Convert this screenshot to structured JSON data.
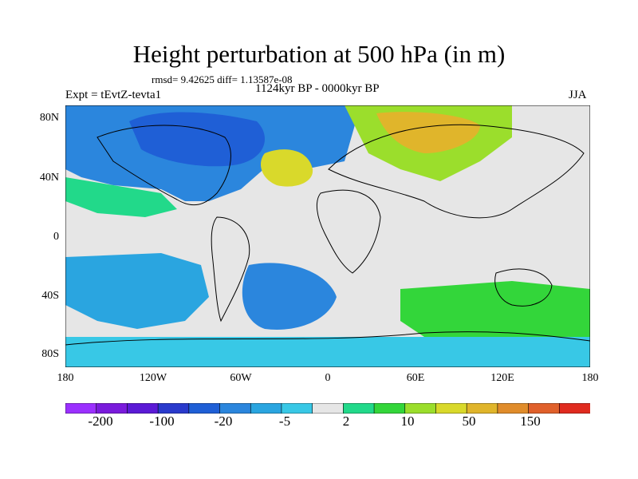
{
  "header": {
    "title": "Height perturbation at 500 hPa (in m)",
    "stats": "rmsd= 9.42625 diff= 1.13587e-08",
    "expt": "Expt = tEvtZ-tevta1",
    "period": "1124kyr BP - 0000kyr BP",
    "season": "JJA"
  },
  "map": {
    "lat_labels": [
      "80N",
      "40N",
      "0",
      "40S",
      "80S"
    ],
    "lon_labels": [
      "180",
      "120W",
      "60W",
      "0",
      "60E",
      "120E",
      "180"
    ],
    "background_color": "#e6e6e6",
    "coastline_color": "#000000"
  },
  "colorbar": {
    "colors": [
      "#9b30ff",
      "#7a1bdc",
      "#5b1ad6",
      "#2a3acc",
      "#1f5fd6",
      "#2b86dd",
      "#2aa5e0",
      "#38c8e6",
      "#e6e6e6",
      "#22d98a",
      "#33d63a",
      "#9bde2c",
      "#d9d92b",
      "#e0b52b",
      "#e08c2b",
      "#e0602b",
      "#e02b1f"
    ],
    "tick_labels": [
      "-200",
      "-100",
      "-20",
      "-5",
      "2",
      "10",
      "50",
      "150"
    ]
  }
}
